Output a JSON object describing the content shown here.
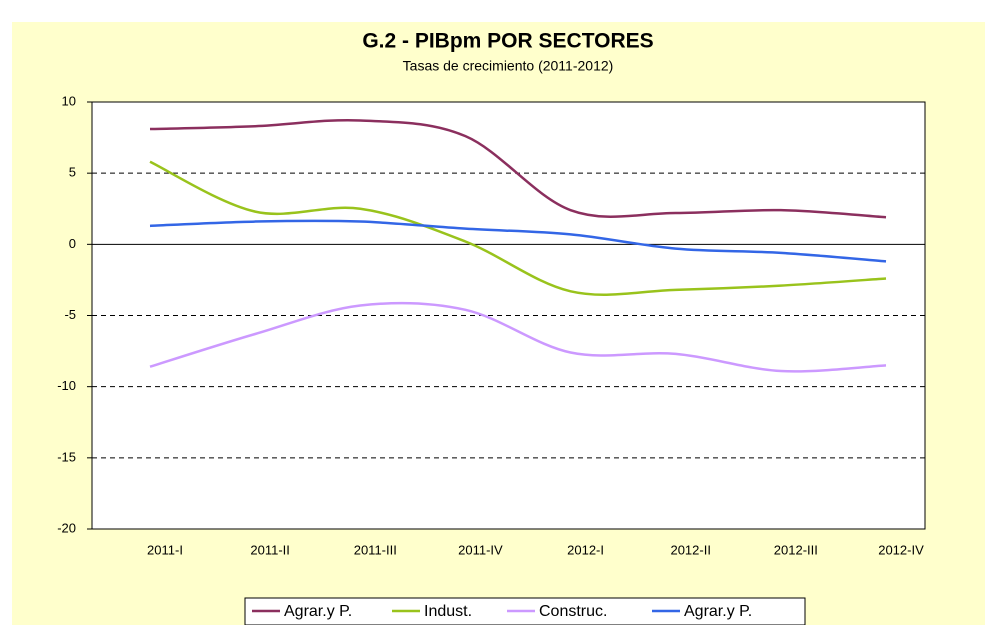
{
  "chart_data": {
    "type": "line",
    "title": "G.2 - PIBpm POR SECTORES",
    "subtitle": "Tasas de crecimiento (2011-2012)",
    "categories": [
      "2011-I",
      "2011-II",
      "2011-III",
      "2011-IV",
      "2012-I",
      "2012-II",
      "2012-III",
      "2012-IV"
    ],
    "series": [
      {
        "name": "Agrar.y P.",
        "color": "#8B2F5E",
        "values": [
          8.1,
          8.3,
          8.7,
          7.6,
          2.4,
          2.2,
          2.4,
          1.9
        ]
      },
      {
        "name": "Indust.",
        "color": "#99C31C",
        "values": [
          5.8,
          2.3,
          2.5,
          0.2,
          -3.3,
          -3.2,
          -2.9,
          -2.4
        ]
      },
      {
        "name": "Construc.",
        "color": "#CC99FF",
        "values": [
          -8.6,
          -6.3,
          -4.3,
          -4.6,
          -7.6,
          -7.7,
          -8.9,
          -8.5
        ]
      },
      {
        "name": "Agrar.y P.",
        "color": "#3366E6",
        "values": [
          1.3,
          1.6,
          1.6,
          1.1,
          0.7,
          -0.3,
          -0.6,
          -1.2
        ]
      }
    ],
    "ylim": [
      -20,
      10
    ],
    "yticks": [
      -20,
      -15,
      -10,
      -5,
      0,
      5,
      10
    ],
    "grid": true,
    "legend": "bottom"
  }
}
